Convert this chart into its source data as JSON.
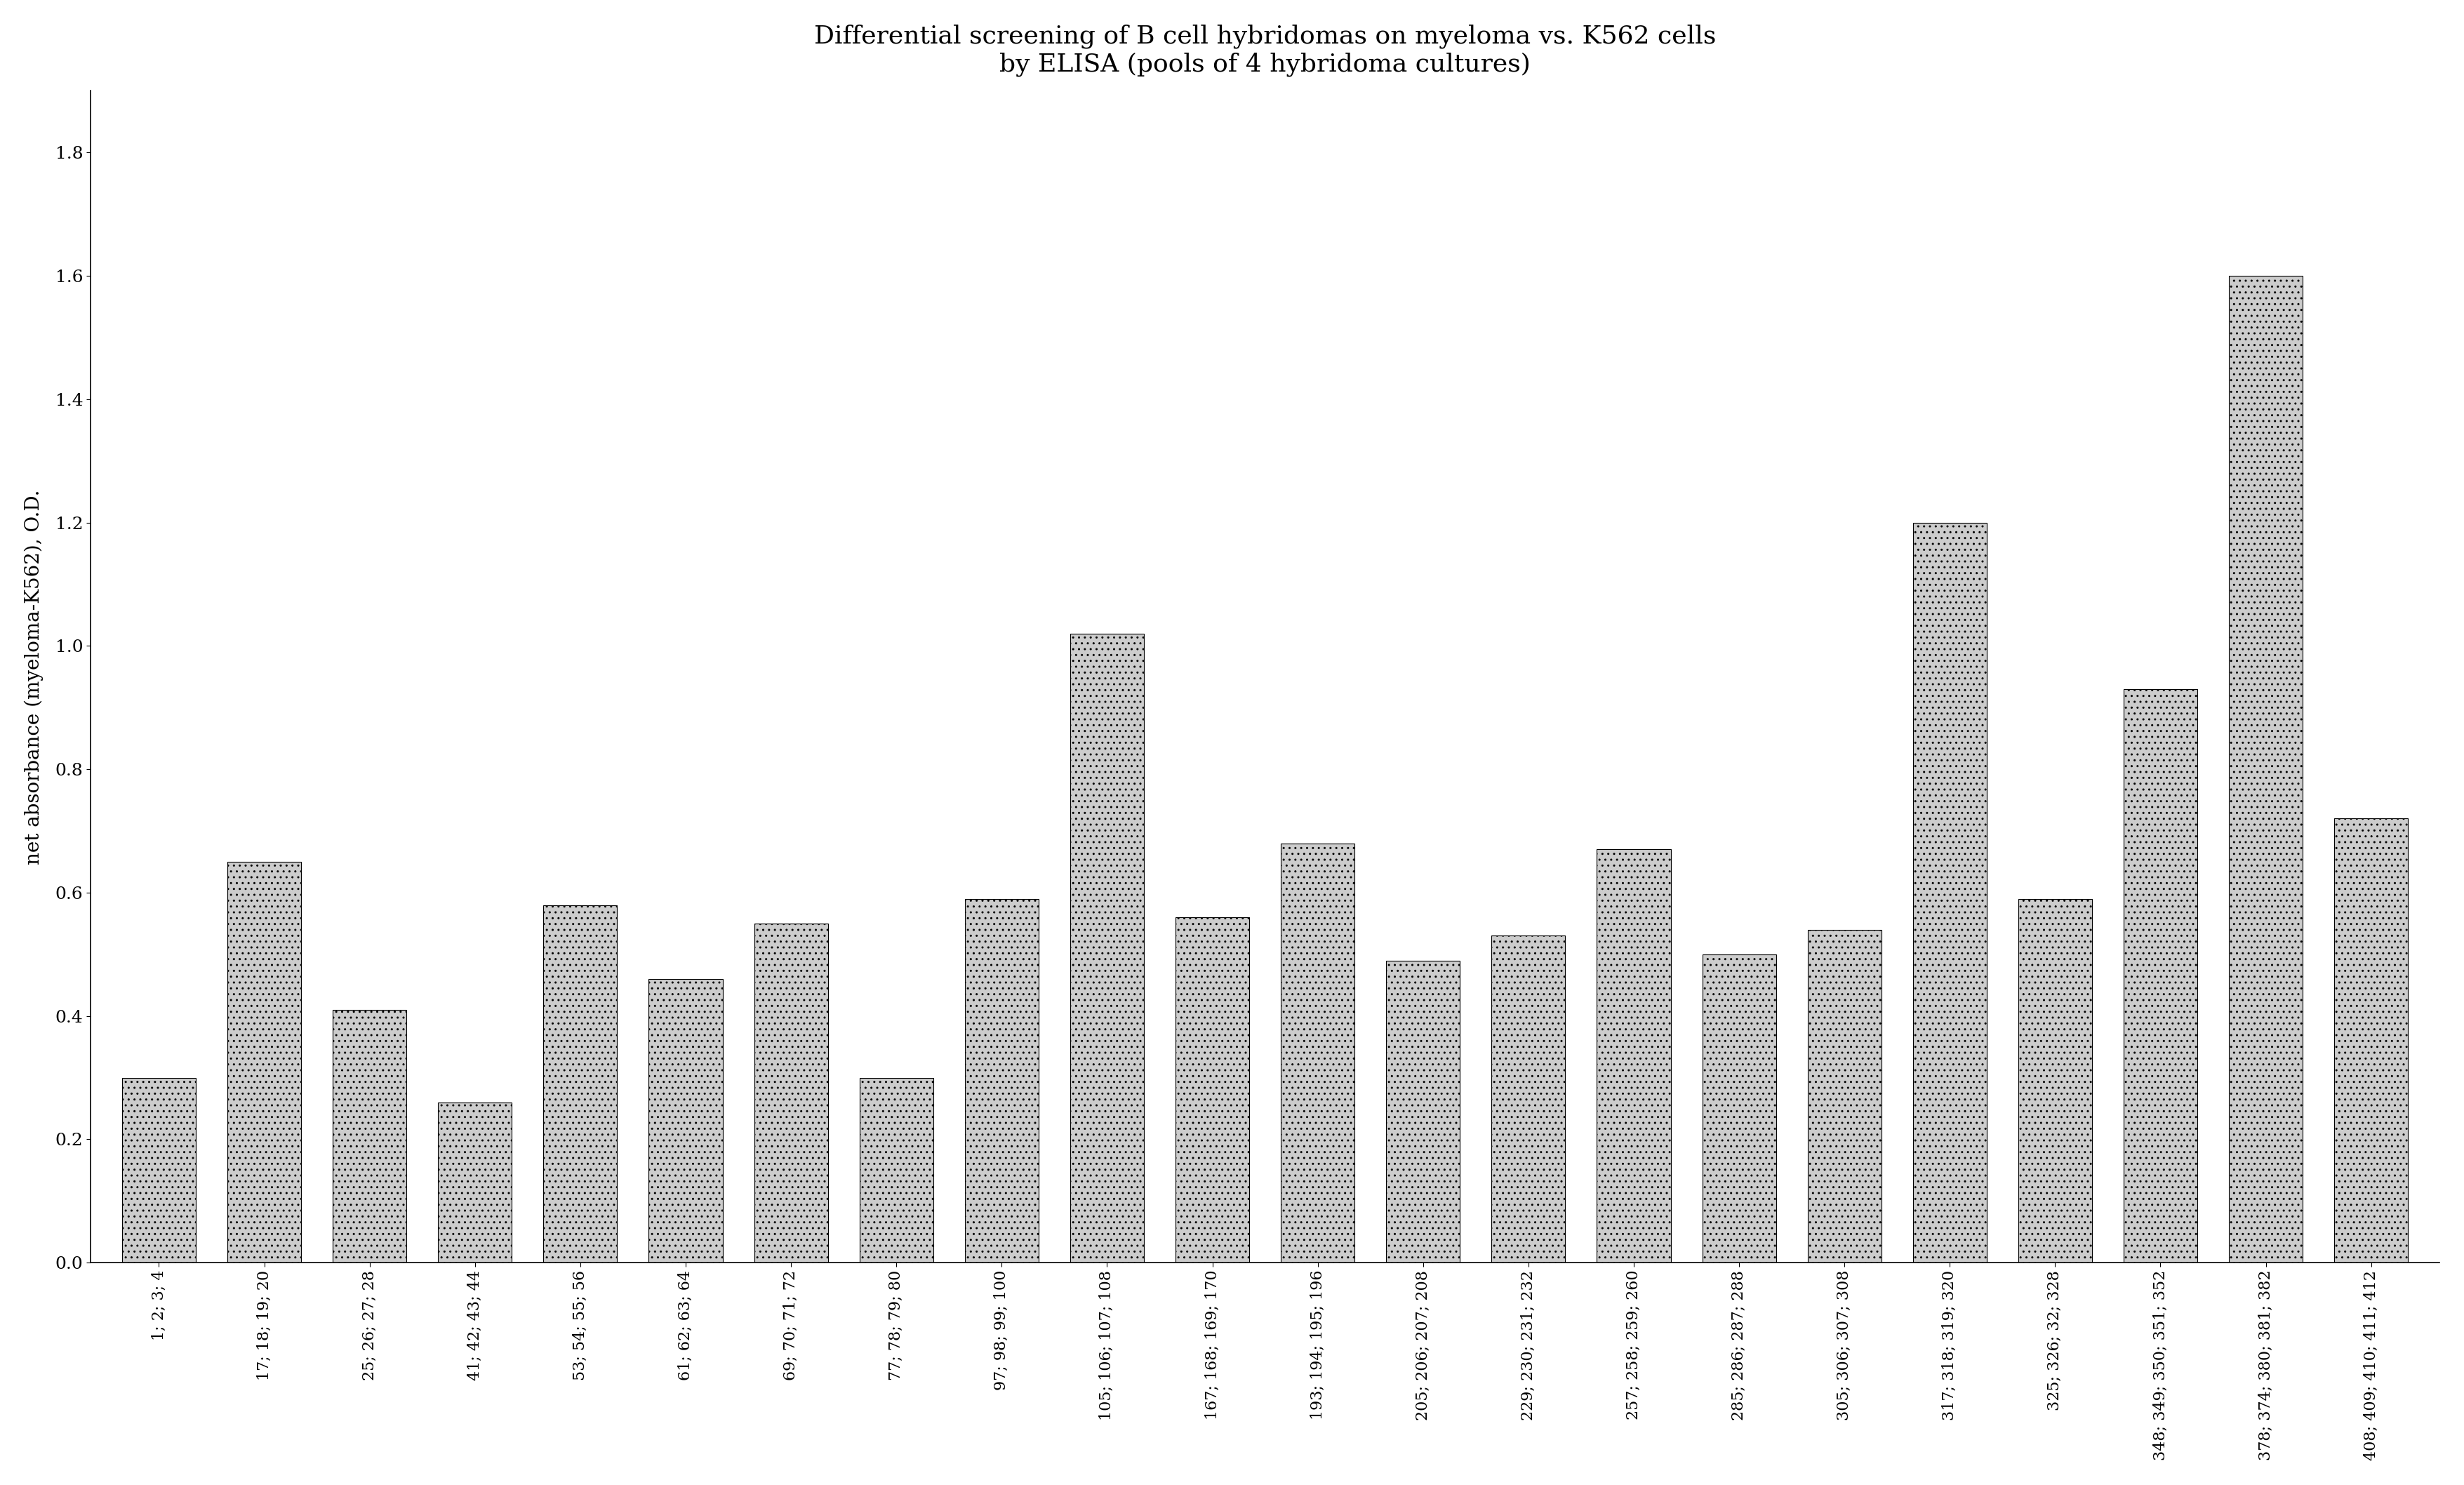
{
  "title_line1": "Differential screening of B cell hybridomas on myeloma vs. K562 cells",
  "title_line2": "by ELISA (pools of 4 hybridoma cultures)",
  "ylabel": "net absorbance (myeloma-K562), O.D.",
  "ylim": [
    0,
    1.9
  ],
  "yticks": [
    0,
    0.2,
    0.4,
    0.6,
    0.8,
    1.0,
    1.2,
    1.4,
    1.6,
    1.8
  ],
  "xtick_labels": [
    "1; 2; 3; 4",
    "17; 18; 19; 20",
    "25; 26; 27; 28",
    "41; 42; 43; 44",
    "53; 54; 55; 56",
    "61; 62; 63; 64",
    "69; 70; 71; 72",
    "77; 78; 79; 80",
    "97; 98; 99; 100",
    "105; 106; 107; 108",
    "167; 168; 169; 170",
    "193; 194; 195; 196",
    "205; 206; 207; 208",
    "229; 230; 231; 232",
    "257; 258; 259; 260",
    "285; 286; 287; 288",
    "305; 306; 307; 308",
    "317; 318; 319; 320",
    "325; 326; 32; 328",
    "348; 349; 350; 351; 352",
    "378; 374; 380; 381; 382",
    "408; 409; 410; 411; 412"
  ],
  "values": [
    0.3,
    0.65,
    0.41,
    0.26,
    0.58,
    0.46,
    0.55,
    0.3,
    0.59,
    1.02,
    0.56,
    0.68,
    0.49,
    0.53,
    0.67,
    0.5,
    0.54,
    1.2,
    0.59,
    0.93,
    1.6,
    0.72
  ],
  "bar_facecolor": "#cccccc",
  "bar_edgecolor": "#000000",
  "background_color": "#ffffff",
  "title_fontsize": 26,
  "ylabel_fontsize": 20,
  "ytick_fontsize": 18,
  "xtick_fontsize": 16
}
